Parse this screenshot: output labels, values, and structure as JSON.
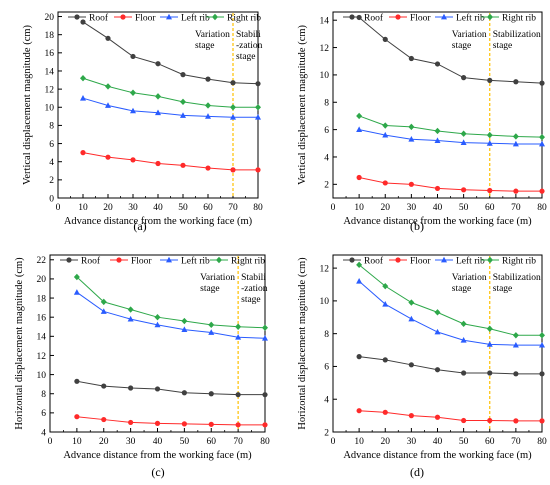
{
  "figure": {
    "panels": [
      "(a)",
      "(b)",
      "(c)",
      "(d)"
    ]
  },
  "colors": {
    "Roof": "#404040",
    "Floor": "#ff2a2a",
    "Left rib": "#2a5cff",
    "Right rib": "#2ea84a",
    "divider": "#ffc000"
  },
  "chart_data": [
    {
      "type": "line",
      "panel_label": "(a)",
      "xlabel": "Advance distance from the working face (m)",
      "ylabel": "Vertical displacement magnitude (cm)",
      "x": [
        10,
        20,
        30,
        40,
        50,
        60,
        70,
        80
      ],
      "xlim": [
        0,
        80
      ],
      "xticks": [
        0,
        10,
        20,
        30,
        40,
        50,
        60,
        70,
        80
      ],
      "ylim": [
        0,
        20.5
      ],
      "yticks": [
        0,
        2,
        4,
        6,
        8,
        10,
        12,
        14,
        16,
        18,
        20
      ],
      "series": [
        {
          "name": "Roof",
          "values": [
            19.4,
            17.6,
            15.6,
            14.8,
            13.6,
            13.1,
            12.7,
            12.6
          ]
        },
        {
          "name": "Floor",
          "values": [
            5.0,
            4.5,
            4.2,
            3.8,
            3.6,
            3.3,
            3.1,
            3.1
          ]
        },
        {
          "name": "Left rib",
          "values": [
            11.0,
            10.2,
            9.6,
            9.4,
            9.1,
            9.0,
            8.9,
            8.9
          ]
        },
        {
          "name": "Right rib",
          "values": [
            13.2,
            12.3,
            11.6,
            11.2,
            10.6,
            10.2,
            10.0,
            10.0
          ]
        }
      ],
      "divider_x": 70,
      "annotations": [
        {
          "lines": [
            "Variation",
            "stage"
          ],
          "side": "left"
        },
        {
          "lines": [
            "Stabili",
            "-zation",
            "stage"
          ],
          "side": "right"
        }
      ],
      "legend": "top"
    },
    {
      "type": "line",
      "panel_label": "(b)",
      "xlabel": "Advance distance from the working face (m)",
      "ylabel": "Vertical displacement magnitude (cm)",
      "x": [
        10,
        20,
        30,
        40,
        50,
        60,
        70,
        80
      ],
      "xlim": [
        0,
        80
      ],
      "xticks": [
        0,
        10,
        20,
        30,
        40,
        50,
        60,
        70,
        80
      ],
      "ylim": [
        1,
        14.6
      ],
      "yticks": [
        2,
        4,
        6,
        8,
        10,
        12,
        14
      ],
      "series": [
        {
          "name": "Roof",
          "values": [
            14.2,
            12.6,
            11.2,
            10.8,
            9.8,
            9.6,
            9.5,
            9.4
          ]
        },
        {
          "name": "Floor",
          "values": [
            2.5,
            2.1,
            2.0,
            1.7,
            1.6,
            1.55,
            1.5,
            1.5
          ]
        },
        {
          "name": "Left rib",
          "values": [
            6.0,
            5.6,
            5.3,
            5.2,
            5.05,
            5.0,
            4.95,
            4.95
          ]
        },
        {
          "name": "Right rib",
          "values": [
            7.0,
            6.3,
            6.2,
            5.9,
            5.7,
            5.6,
            5.5,
            5.45
          ]
        }
      ],
      "divider_x": 60,
      "annotations": [
        {
          "lines": [
            "Variation",
            "stage"
          ],
          "side": "left"
        },
        {
          "lines": [
            "Stabilization",
            "stage"
          ],
          "side": "right"
        }
      ],
      "legend": "top"
    },
    {
      "type": "line",
      "panel_label": "(c)",
      "xlabel": "Advance distance from the working face (m)",
      "ylabel": "Horizontal displacement magnitude (cm)",
      "x": [
        10,
        20,
        30,
        40,
        50,
        60,
        70,
        80
      ],
      "xlim": [
        0,
        80
      ],
      "xticks": [
        0,
        10,
        20,
        30,
        40,
        50,
        60,
        70,
        80
      ],
      "ylim": [
        4,
        22.5
      ],
      "yticks": [
        4,
        6,
        8,
        10,
        12,
        14,
        16,
        18,
        20,
        22
      ],
      "series": [
        {
          "name": "Roof",
          "values": [
            9.3,
            8.8,
            8.6,
            8.5,
            8.1,
            8.0,
            7.9,
            7.9
          ]
        },
        {
          "name": "Floor",
          "values": [
            5.6,
            5.3,
            5.0,
            4.9,
            4.85,
            4.8,
            4.75,
            4.75
          ]
        },
        {
          "name": "Left rib",
          "values": [
            18.6,
            16.6,
            15.8,
            15.2,
            14.7,
            14.4,
            13.9,
            13.8
          ]
        },
        {
          "name": "Right rib",
          "values": [
            20.2,
            17.6,
            16.8,
            16.0,
            15.6,
            15.2,
            15.0,
            14.9
          ]
        }
      ],
      "divider_x": 70,
      "annotations": [
        {
          "lines": [
            "Variation",
            "stage"
          ],
          "side": "left"
        },
        {
          "lines": [
            "Stabili",
            "-zation",
            "stage"
          ],
          "side": "right"
        }
      ],
      "legend": "top"
    },
    {
      "type": "line",
      "panel_label": "(d)",
      "xlabel": "Advance distance from the working face (m)",
      "ylabel": "Horizontal displacement magnitude (cm)",
      "x": [
        10,
        20,
        30,
        40,
        50,
        60,
        70,
        80
      ],
      "xlim": [
        0,
        80
      ],
      "xticks": [
        0,
        10,
        20,
        30,
        40,
        50,
        60,
        70,
        80
      ],
      "ylim": [
        2,
        12.8
      ],
      "yticks": [
        2,
        4,
        6,
        8,
        10,
        12
      ],
      "series": [
        {
          "name": "Roof",
          "values": [
            6.6,
            6.4,
            6.1,
            5.8,
            5.6,
            5.6,
            5.55,
            5.55
          ]
        },
        {
          "name": "Floor",
          "values": [
            3.3,
            3.2,
            3.0,
            2.9,
            2.7,
            2.7,
            2.68,
            2.68
          ]
        },
        {
          "name": "Left rib",
          "values": [
            11.2,
            9.8,
            8.9,
            8.1,
            7.6,
            7.35,
            7.3,
            7.3
          ]
        },
        {
          "name": "Right rib",
          "values": [
            12.2,
            10.9,
            9.9,
            9.3,
            8.6,
            8.3,
            7.9,
            7.9
          ]
        }
      ],
      "divider_x": 60,
      "annotations": [
        {
          "lines": [
            "Variation",
            "stage"
          ],
          "side": "left"
        },
        {
          "lines": [
            "Stabilization",
            "stage"
          ],
          "side": "right"
        }
      ],
      "legend": "top"
    }
  ]
}
